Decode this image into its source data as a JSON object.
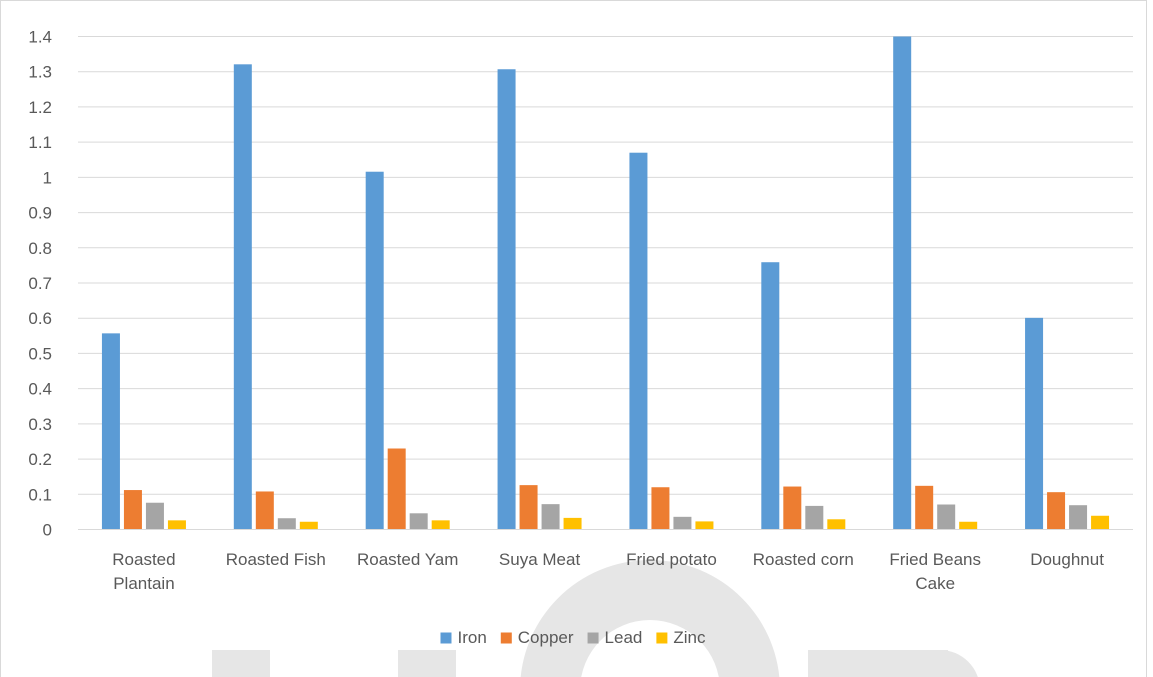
{
  "chart_data": {
    "type": "bar",
    "title": "",
    "xlabel": "",
    "ylabel": "",
    "ylim": [
      0,
      1.4
    ],
    "yticks": [
      "0",
      "0.1",
      "0.2",
      "0.3",
      "0.4",
      "0.5",
      "0.6",
      "0.7",
      "0.8",
      "0.9",
      "1",
      "1.1",
      "1.2",
      "1.3",
      "1.4"
    ],
    "grid": true,
    "legend_position": "bottom",
    "categories": [
      [
        "Roasted",
        "Plantain"
      ],
      [
        "Roasted Fish"
      ],
      [
        "Roasted Yam"
      ],
      [
        "Suya Meat"
      ],
      [
        "Fried potato"
      ],
      [
        "Roasted corn"
      ],
      [
        "Fried Beans",
        "Cake"
      ],
      [
        "Doughnut"
      ]
    ],
    "series": [
      {
        "name": "Iron",
        "color": "#5B9BD5",
        "values": [
          0.557,
          1.321,
          1.016,
          1.307,
          1.07,
          0.759,
          1.4,
          0.601
        ]
      },
      {
        "name": "Copper",
        "color": "#ED7D31",
        "values": [
          0.112,
          0.108,
          0.23,
          0.126,
          0.12,
          0.122,
          0.124,
          0.106
        ]
      },
      {
        "name": "Lead",
        "color": "#A5A5A5",
        "values": [
          0.076,
          0.032,
          0.046,
          0.072,
          0.036,
          0.067,
          0.071,
          0.069
        ]
      },
      {
        "name": "Zinc",
        "color": "#FFC000",
        "values": [
          0.026,
          0.022,
          0.026,
          0.033,
          0.023,
          0.029,
          0.022,
          0.039
        ]
      }
    ]
  }
}
